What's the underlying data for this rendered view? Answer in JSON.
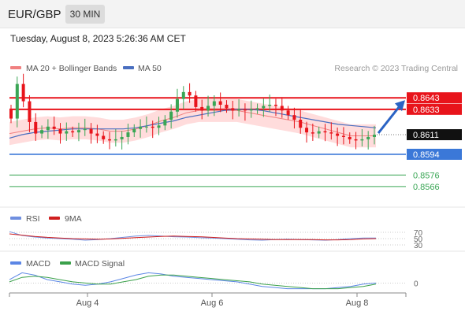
{
  "header": {
    "symbol": "EUR/GBP",
    "timeframe": "30 MIN"
  },
  "timestamp": "Tuesday, August 8, 2023 5:26:36 AM CET",
  "legend": {
    "bollinger_label": "MA 20 + Bollinger Bands",
    "ma50_label": "MA 50",
    "credit": "Research © 2023 Trading Central"
  },
  "colors": {
    "resistance": "#e8141b",
    "support_blue": "#3b78d8",
    "support_green": "#3aa655",
    "candle_up": "#3aa655",
    "candle_down": "#e8141b",
    "bollinger_fill": "#ffd6d6",
    "ma20": "#f08080",
    "ma50": "#4a6fc0",
    "arrow": "#2a63c4",
    "rsi": "#6f8fe0",
    "rsi_ma": "#d01f1f",
    "macd": "#5b86e5",
    "macd_signal": "#3aa04a"
  },
  "chart_data": [
    {
      "type": "candlestick",
      "title": "EUR/GBP 30 MIN",
      "x_ticks": [
        "Aug 4",
        "Aug 6",
        "Aug 8"
      ],
      "y_range": [
        0.8555,
        0.8665
      ],
      "last_price": 0.8611,
      "series": [
        {
          "name": "MA 20 + Bollinger Bands",
          "values": [
            0.8612,
            0.8614,
            0.8616,
            0.8617,
            0.8616,
            0.8617,
            0.8617,
            0.8616,
            0.8614,
            0.8614,
            0.8616,
            0.8619,
            0.8623,
            0.8626,
            0.863,
            0.8632,
            0.8632,
            0.8632,
            0.8632,
            0.863,
            0.8628,
            0.8626,
            0.8624,
            0.8622,
            0.8619,
            0.8616,
            0.8613,
            0.861,
            0.861,
            0.861
          ]
        },
        {
          "name": "MA 50",
          "values": [
            0.8608,
            0.8611,
            0.8613,
            0.8614,
            0.8615,
            0.8616,
            0.8616,
            0.8616,
            0.8616,
            0.8616,
            0.8617,
            0.8619,
            0.8621,
            0.8623,
            0.8626,
            0.8628,
            0.863,
            0.8632,
            0.8633,
            0.8633,
            0.8632,
            0.863,
            0.8628,
            0.8626,
            0.8624,
            0.8622,
            0.862,
            0.8619,
            0.8618,
            0.8617
          ]
        }
      ],
      "candles_close": [
        0.8625,
        0.8655,
        0.864,
        0.8622,
        0.8612,
        0.8615,
        0.8618,
        0.8616,
        0.8612,
        0.8614,
        0.8613,
        0.8615,
        0.8616,
        0.8612,
        0.861,
        0.8607,
        0.8606,
        0.8607,
        0.8609,
        0.8613,
        0.8616,
        0.8618,
        0.8618,
        0.8617,
        0.8619,
        0.8624,
        0.8631,
        0.8642,
        0.8648,
        0.8645,
        0.8635,
        0.8632,
        0.8636,
        0.864,
        0.8637,
        0.8634,
        0.8632,
        0.8633,
        0.8632,
        0.8633,
        0.8634,
        0.8636,
        0.8637,
        0.8636,
        0.8632,
        0.8628,
        0.8624,
        0.8617,
        0.8613,
        0.8612,
        0.8614,
        0.8613,
        0.8612,
        0.861,
        0.8609,
        0.8607,
        0.8606,
        0.8607,
        0.8609,
        0.8611
      ],
      "levels": [
        {
          "label": "0.8643",
          "value": 0.8643,
          "kind": "resistance"
        },
        {
          "label": "0.8633",
          "value": 0.8633,
          "kind": "resistance"
        },
        {
          "label": "0.8611",
          "value": 0.8611,
          "kind": "last"
        },
        {
          "label": "0.8594",
          "value": 0.8594,
          "kind": "support"
        },
        {
          "label": "0.8576",
          "value": 0.8576,
          "kind": "support2"
        },
        {
          "label": "0.8566",
          "value": 0.8566,
          "kind": "support2"
        }
      ]
    },
    {
      "type": "line",
      "title": "RSI",
      "y_ticks": [
        "70",
        "50",
        "30"
      ],
      "series": [
        {
          "name": "RSI",
          "values": [
            72,
            60,
            55,
            52,
            50,
            48,
            45,
            47,
            50,
            54,
            58,
            60,
            58,
            56,
            55,
            53,
            52,
            50,
            48,
            46,
            45,
            47,
            48,
            47,
            46,
            45,
            47,
            50,
            52,
            52
          ]
        },
        {
          "name": "9MA",
          "values": [
            65,
            61,
            57,
            54,
            52,
            50,
            49,
            48,
            49,
            51,
            53,
            55,
            57,
            58,
            57,
            56,
            54,
            52,
            50,
            49,
            48,
            47,
            47,
            47,
            47,
            46,
            46,
            47,
            49,
            50
          ]
        }
      ]
    },
    {
      "type": "line",
      "title": "MACD",
      "y_ticks": [
        "0"
      ],
      "series": [
        {
          "name": "MACD",
          "values": [
            0.3,
            0.9,
            0.7,
            0.3,
            0.1,
            -0.1,
            -0.2,
            -0.1,
            0.1,
            0.4,
            0.7,
            0.9,
            0.8,
            0.6,
            0.5,
            0.4,
            0.3,
            0.2,
            0.1,
            -0.1,
            -0.3,
            -0.4,
            -0.5,
            -0.5,
            -0.5,
            -0.5,
            -0.4,
            -0.3,
            -0.1,
            0.0
          ]
        },
        {
          "name": "MACD Signal",
          "values": [
            0.1,
            0.5,
            0.6,
            0.5,
            0.3,
            0.1,
            0.0,
            -0.1,
            -0.1,
            0.1,
            0.3,
            0.6,
            0.7,
            0.7,
            0.6,
            0.5,
            0.4,
            0.3,
            0.2,
            0.1,
            -0.1,
            -0.2,
            -0.3,
            -0.4,
            -0.5,
            -0.5,
            -0.5,
            -0.4,
            -0.3,
            -0.1
          ]
        }
      ]
    }
  ]
}
